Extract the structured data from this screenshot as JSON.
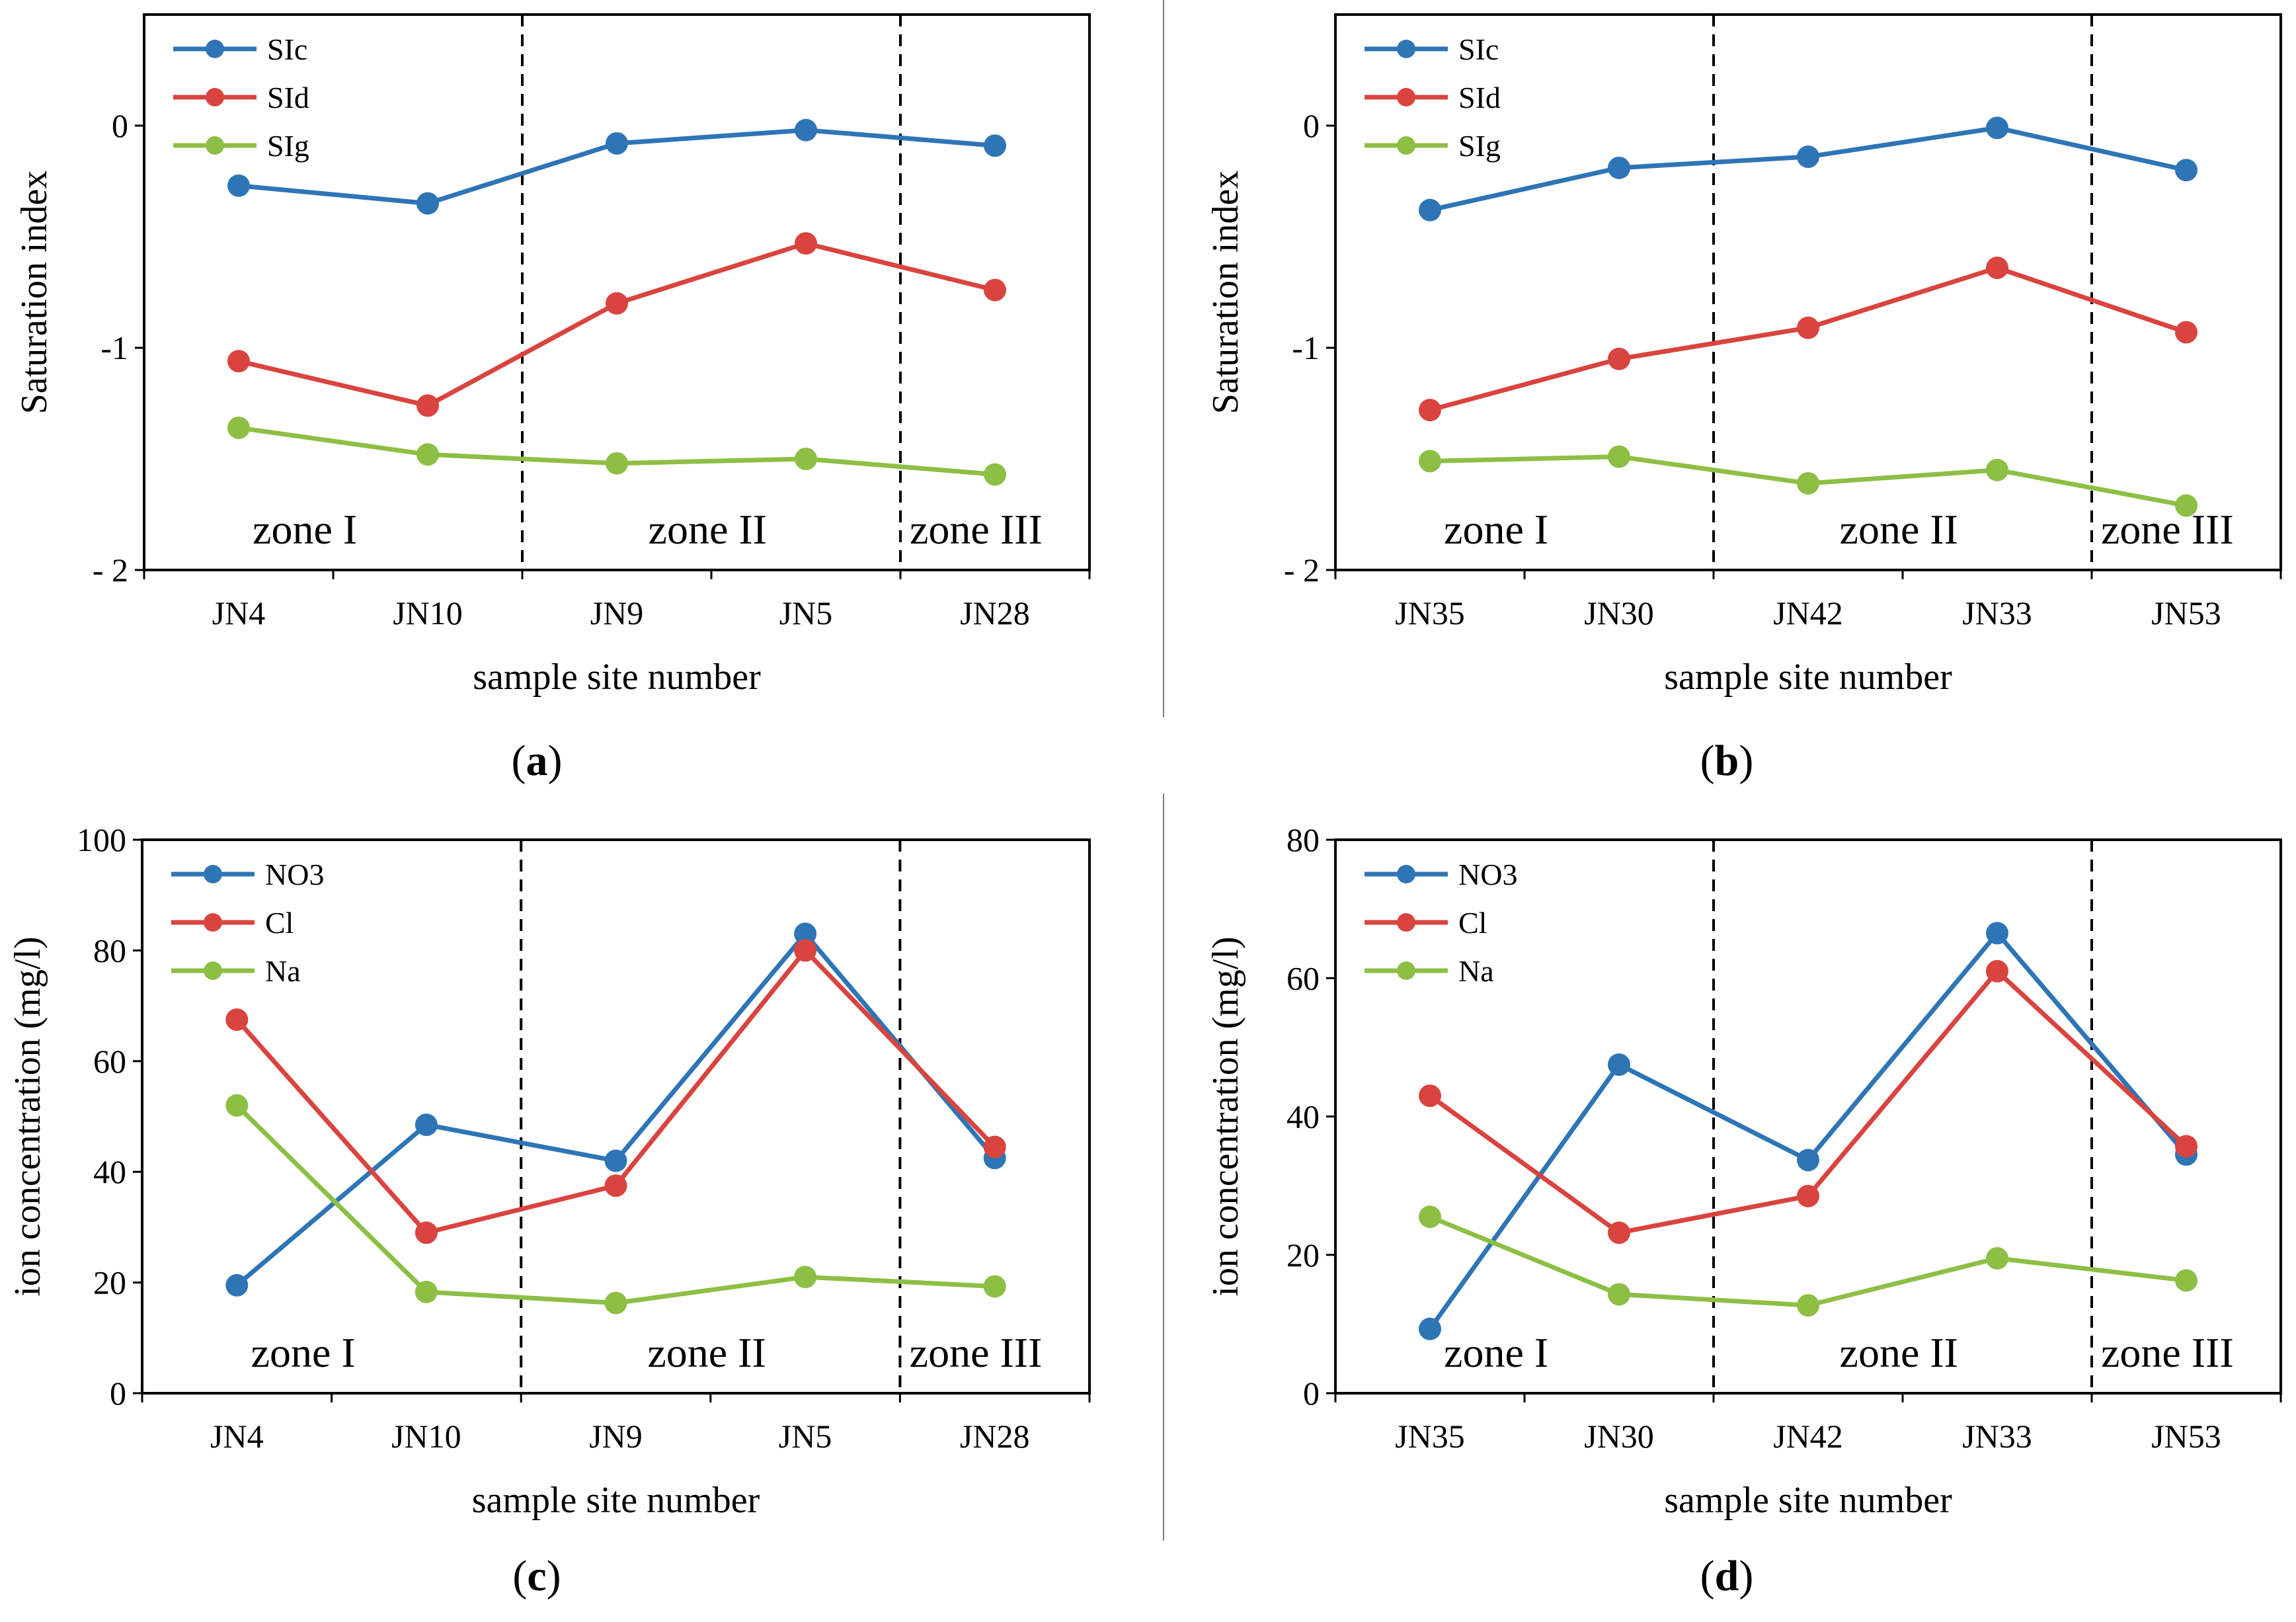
{
  "colors": {
    "blue": "#2E75B6",
    "red": "#D9443F",
    "green": "#8DBF45"
  },
  "chart_data": [
    {
      "type": "line",
      "panel_label": "(a)",
      "caption_letter": "a",
      "categories": [
        "JN4",
        "JN10",
        "JN9",
        "JN5",
        "JN28"
      ],
      "series": [
        {
          "name": "SIc",
          "color": "#2E75B6",
          "values": [
            -0.27,
            -0.35,
            -0.08,
            -0.02,
            -0.09
          ]
        },
        {
          "name": "SId",
          "color": "#D9443F",
          "values": [
            -1.06,
            -1.26,
            -0.8,
            -0.53,
            -0.74
          ]
        },
        {
          "name": "SIg",
          "color": "#8DBF45",
          "values": [
            -1.36,
            -1.48,
            -1.52,
            -1.5,
            -1.57
          ]
        }
      ],
      "xlabel": "sample site number",
      "ylabel": "Saturation index",
      "ylim": [
        -2,
        0.5
      ],
      "yticks": [
        0,
        -1,
        -2
      ],
      "ytick_labels": [
        "0",
        "-1",
        "- 2"
      ],
      "legend_position": "top-left",
      "zone_boundaries_after_index": [
        1,
        3
      ],
      "zones": [
        "zone I",
        "zone II",
        "zone III"
      ]
    },
    {
      "type": "line",
      "panel_label": "(b)",
      "caption_letter": "b",
      "categories": [
        "JN35",
        "JN30",
        "JN42",
        "JN33",
        "JN53"
      ],
      "series": [
        {
          "name": "SIc",
          "color": "#2E75B6",
          "values": [
            -0.38,
            -0.19,
            -0.14,
            -0.01,
            -0.2
          ]
        },
        {
          "name": "SId",
          "color": "#D9443F",
          "values": [
            -1.28,
            -1.05,
            -0.91,
            -0.64,
            -0.93
          ]
        },
        {
          "name": "SIg",
          "color": "#8DBF45",
          "values": [
            -1.51,
            -1.49,
            -1.61,
            -1.55,
            -1.71
          ]
        }
      ],
      "xlabel": "sample site number",
      "ylabel": "Saturation index",
      "ylim": [
        -2,
        0.5
      ],
      "yticks": [
        0,
        -1,
        -2
      ],
      "ytick_labels": [
        "0",
        "-1",
        "- 2"
      ],
      "legend_position": "top-left",
      "zone_boundaries_after_index": [
        1,
        3
      ],
      "zones": [
        "zone I",
        "zone II",
        "zone III"
      ]
    },
    {
      "type": "line",
      "panel_label": "(c)",
      "caption_letter": "c",
      "categories": [
        "JN4",
        "JN10",
        "JN9",
        "JN5",
        "JN28"
      ],
      "series": [
        {
          "name": "NO3",
          "color": "#2E75B6",
          "values": [
            19.5,
            48.5,
            42.0,
            83.0,
            42.5
          ]
        },
        {
          "name": "Cl",
          "color": "#D9443F",
          "values": [
            67.5,
            29.0,
            37.5,
            80.0,
            44.5
          ]
        },
        {
          "name": "Na",
          "color": "#8DBF45",
          "values": [
            52.0,
            18.3,
            16.3,
            21.0,
            19.3
          ]
        }
      ],
      "xlabel": "sample site number",
      "ylabel": "ion concentration (mg/l)",
      "ylim": [
        0,
        100
      ],
      "yticks": [
        0,
        20,
        40,
        60,
        80,
        100
      ],
      "ytick_labels": [
        "0",
        "20",
        "40",
        "60",
        "80",
        "100"
      ],
      "legend_position": "top-left",
      "zone_boundaries_after_index": [
        1,
        3
      ],
      "zones": [
        "zone I",
        "zone II",
        "zone III"
      ]
    },
    {
      "type": "line",
      "panel_label": "(d)",
      "caption_letter": "d",
      "categories": [
        "JN35",
        "JN30",
        "JN42",
        "JN33",
        "JN53"
      ],
      "series": [
        {
          "name": "NO3",
          "color": "#2E75B6",
          "values": [
            9.3,
            47.5,
            33.7,
            66.5,
            34.5
          ]
        },
        {
          "name": "Cl",
          "color": "#D9443F",
          "values": [
            43.0,
            23.2,
            28.5,
            61.0,
            35.7
          ]
        },
        {
          "name": "Na",
          "color": "#8DBF45",
          "values": [
            25.5,
            14.3,
            12.7,
            19.5,
            16.3
          ]
        }
      ],
      "xlabel": "sample site number",
      "ylabel": "ion concentration (mg/l)",
      "ylim": [
        0,
        80
      ],
      "yticks": [
        0,
        20,
        40,
        60,
        80
      ],
      "ytick_labels": [
        "0",
        "20",
        "40",
        "60",
        "80"
      ],
      "legend_position": "top-left",
      "zone_boundaries_after_index": [
        1,
        3
      ],
      "zones": [
        "zone I",
        "zone II",
        "zone III"
      ]
    }
  ]
}
